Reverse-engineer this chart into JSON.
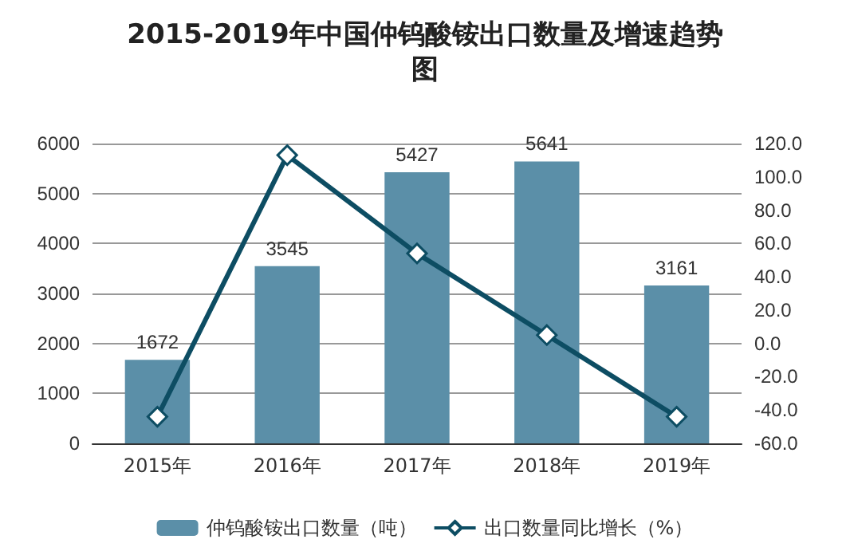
{
  "chart_data": {
    "type": "bar",
    "title": "2015-2019年中国仲钨酸铵出口数量及增速趋势图",
    "categories": [
      "2015年",
      "2016年",
      "2017年",
      "2018年",
      "2019年"
    ],
    "series": [
      {
        "name": "仲钨酸铵出口数量（吨）",
        "color": "#5b8fa8",
        "values": [
          1672,
          3545,
          5427,
          5641,
          3161
        ],
        "value_labels": [
          "1672",
          "3545",
          "5427",
          "5641",
          "3161"
        ]
      },
      {
        "name": "出口数量同比增长（%）",
        "type": "line",
        "axis": "y2",
        "color": "#0d4d63",
        "marker": "diamond",
        "values": [
          -44,
          113,
          54,
          5,
          -44
        ]
      }
    ],
    "ylim": [
      0,
      6000
    ],
    "yticks": [
      0,
      1000,
      2000,
      3000,
      4000,
      5000,
      6000
    ],
    "y2lim": [
      -60,
      120
    ],
    "y2ticks": [
      {
        "value": -60,
        "label": "-60.0"
      },
      {
        "value": -40,
        "label": "-40.0"
      },
      {
        "value": -20,
        "label": "-20.0"
      },
      {
        "value": 0,
        "label": "0.0"
      },
      {
        "value": 20,
        "label": "20.0"
      },
      {
        "value": 40,
        "label": "40.0"
      },
      {
        "value": 60,
        "label": "60.0"
      },
      {
        "value": 80,
        "label": "80.0"
      },
      {
        "value": 100,
        "label": "100.0"
      },
      {
        "value": 120,
        "label": "120.0"
      }
    ],
    "grid": "y",
    "legend": "bottom"
  }
}
